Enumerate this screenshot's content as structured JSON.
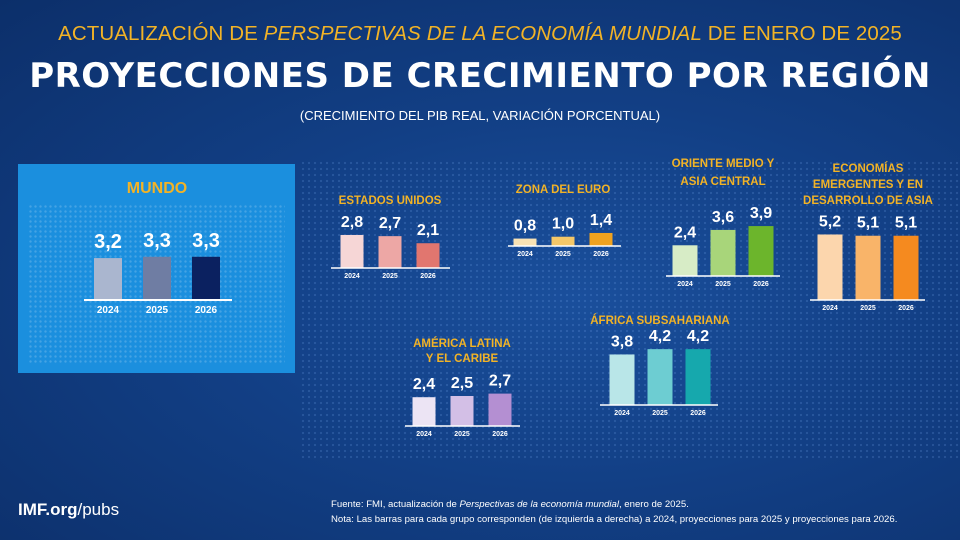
{
  "header": {
    "line1_pre": "ACTUALIZACIÓN DE ",
    "line1_italic": "PERSPECTIVAS DE LA ECONOMÍA MUNDIAL",
    "line1_post": " DE ENERO DE 2025",
    "title": "PROYECCIONES DE CRECIMIENTO POR REGIÓN",
    "subtitle": "(CRECIMIENTO DEL PIB REAL, VARIACIÓN PORCENTUAL)"
  },
  "chart_data": [
    {
      "type": "bar",
      "title": "MUNDO",
      "categories": [
        "2024",
        "2025",
        "2026"
      ],
      "values": [
        3.2,
        3.3,
        3.3
      ],
      "value_labels": [
        "3,2",
        "3,3",
        "3,3"
      ],
      "colors": [
        "#aab6cf",
        "#6f7da3",
        "#0b2160"
      ]
    },
    {
      "type": "bar",
      "title": "ESTADOS UNIDOS",
      "categories": [
        "2024",
        "2025",
        "2026"
      ],
      "values": [
        2.8,
        2.7,
        2.1
      ],
      "value_labels": [
        "2,8",
        "2,7",
        "2,1"
      ],
      "colors": [
        "#f6d6d6",
        "#eda7a5",
        "#e1766f"
      ]
    },
    {
      "type": "bar",
      "title": "ZONA DEL EURO",
      "categories": [
        "2024",
        "2025",
        "2026"
      ],
      "values": [
        0.8,
        1.0,
        1.4
      ],
      "value_labels": [
        "0,8",
        "1,0",
        "1,4"
      ],
      "colors": [
        "#f8e2b4",
        "#f4c768",
        "#efa21f"
      ]
    },
    {
      "type": "bar",
      "title": "ORIENTE MEDIO Y ASIA CENTRAL",
      "categories": [
        "2024",
        "2025",
        "2026"
      ],
      "values": [
        2.4,
        3.6,
        3.9
      ],
      "value_labels": [
        "2,4",
        "3,6",
        "3,9"
      ],
      "colors": [
        "#d7ecc6",
        "#a8d57a",
        "#6cb52c"
      ]
    },
    {
      "type": "bar",
      "title": "ECONOMÍAS EMERGENTES Y EN DESARROLLO DE ASIA",
      "categories": [
        "2024",
        "2025",
        "2026"
      ],
      "values": [
        5.2,
        5.1,
        5.1
      ],
      "value_labels": [
        "5,2",
        "5,1",
        "5,1"
      ],
      "colors": [
        "#fcd6ad",
        "#f9b469",
        "#f58a1f"
      ]
    },
    {
      "type": "bar",
      "title": "AMÉRICA LATINA Y EL CARIBE",
      "categories": [
        "2024",
        "2025",
        "2026"
      ],
      "values": [
        2.4,
        2.5,
        2.7
      ],
      "value_labels": [
        "2,4",
        "2,5",
        "2,7"
      ],
      "colors": [
        "#ece4f4",
        "#d3bfe6",
        "#b48fd2"
      ]
    },
    {
      "type": "bar",
      "title": "ÁFRICA SUBSAHARIANA",
      "categories": [
        "2024",
        "2025",
        "2026"
      ],
      "values": [
        3.8,
        4.2,
        4.2
      ],
      "value_labels": [
        "3,8",
        "4,2",
        "4,2"
      ],
      "colors": [
        "#b9e6e8",
        "#6dcdd2",
        "#16a8ad"
      ]
    }
  ],
  "footer": {
    "logo_bold": "IMF.org",
    "logo_rest": "/pubs",
    "source_pre": "Fuente: FMI, actualización de ",
    "source_italic": "Perspectivas de la economía mundial",
    "source_post": ", enero de 2025.",
    "note": "Nota: Las barras para cada grupo corresponden (de izquierda a derecha) a 2024, proyecciones para 2025 y proyecciones para 2026."
  }
}
